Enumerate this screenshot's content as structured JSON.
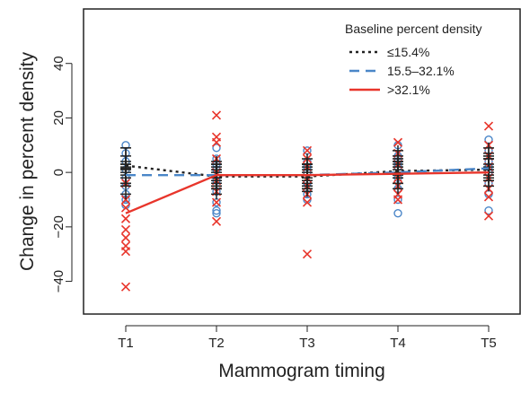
{
  "chart_data": {
    "type": "line",
    "title": "",
    "xlabel": "Mammogram timing",
    "ylabel": "Change in percent density",
    "categories": [
      "T1",
      "T2",
      "T3",
      "T4",
      "T5"
    ],
    "ylim": [
      -52,
      60
    ],
    "yticks": [
      -40,
      -20,
      0,
      20,
      40
    ],
    "legend": {
      "title": "Baseline percent density",
      "placement": "top-right"
    },
    "colors": {
      "low": "#222222",
      "mid": "#4a86c8",
      "high": "#e8352b",
      "err": "#222222"
    },
    "series": [
      {
        "name": "≤15.4%",
        "key": "low",
        "style": "dotted",
        "marker": "plus",
        "values": [
          2.5,
          -1.5,
          -1.5,
          0.5,
          1.0
        ]
      },
      {
        "name": "15.5–32.1%",
        "key": "mid",
        "style": "dashed",
        "marker": "circle",
        "values": [
          -1.0,
          -1.0,
          -1.0,
          0.0,
          1.5
        ]
      },
      {
        "name": ">32.1%",
        "key": "high",
        "style": "solid",
        "marker": "cross",
        "values": [
          -15.0,
          -1.0,
          -1.0,
          -0.5,
          0.0
        ]
      }
    ],
    "points": {
      "low": [
        [
          1.5,
          0,
          2,
          -2,
          -4,
          4,
          6,
          -8,
          1,
          -1,
          3
        ],
        [
          -2,
          0,
          -4,
          -6,
          2,
          -8,
          1,
          -3,
          -5,
          4,
          -1
        ],
        [
          -2,
          0,
          -4,
          2,
          -6,
          -1,
          3,
          5,
          -3,
          -7,
          1
        ],
        [
          0,
          2,
          -2,
          4,
          -4,
          6,
          1,
          -1,
          -6,
          3,
          8
        ],
        [
          1,
          3,
          -1,
          5,
          -3,
          7,
          0,
          -5,
          2,
          9,
          -2
        ]
      ],
      "mid": [
        [
          10,
          7,
          4,
          1,
          -2,
          -5,
          -8,
          -10,
          -12
        ],
        [
          9,
          5,
          1,
          -3,
          -7,
          -11,
          -14,
          -15,
          3
        ],
        [
          8,
          4,
          0,
          -4,
          -8,
          -10,
          2
        ],
        [
          10,
          6,
          2,
          -2,
          -6,
          -10,
          -15,
          4
        ],
        [
          12,
          8,
          4,
          0,
          -4,
          -8,
          -14,
          2
        ]
      ],
      "high": [
        [
          -17,
          -21,
          -24,
          -27,
          -29,
          -42,
          -13,
          -10,
          -4
        ],
        [
          21,
          13,
          5,
          0,
          -3,
          -7,
          -11,
          -18,
          11
        ],
        [
          8,
          5,
          2,
          -2,
          -5,
          -8,
          -11,
          -30
        ],
        [
          11,
          7,
          3,
          -2,
          -5,
          -8,
          -10
        ],
        [
          17,
          10,
          6,
          2,
          -2,
          -6,
          -9,
          -16
        ]
      ]
    },
    "errorbars": {
      "low": [
        [
          -4,
          9
        ],
        [
          -6,
          3
        ],
        [
          -6,
          3
        ],
        [
          -4,
          5
        ],
        [
          -3,
          5
        ]
      ],
      "mid": [
        [
          -5,
          3
        ],
        [
          -5,
          3
        ],
        [
          -5,
          3
        ],
        [
          -4,
          4
        ],
        [
          -3,
          6
        ]
      ]
    }
  }
}
